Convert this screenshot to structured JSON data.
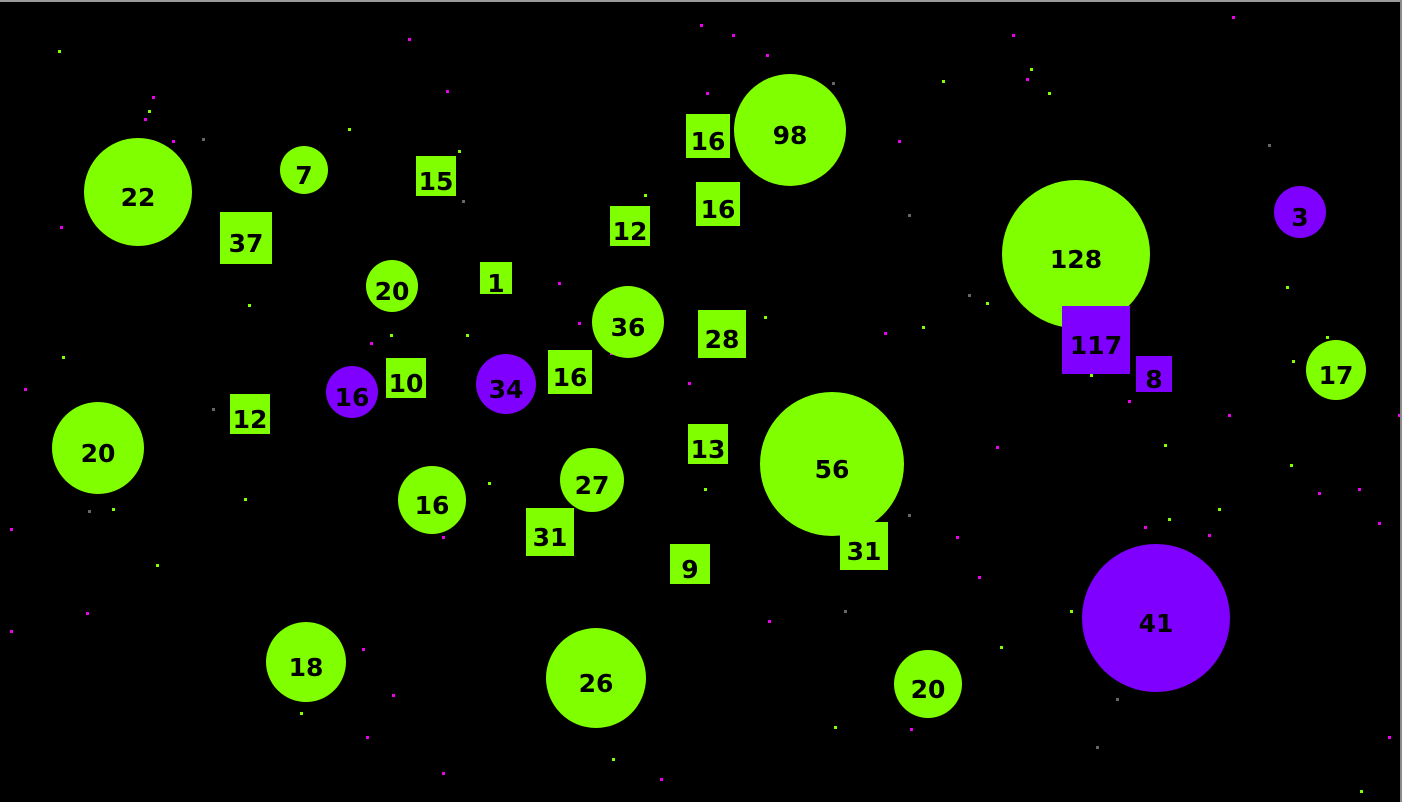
{
  "colors": {
    "background": "#000000",
    "green": "#7fff00",
    "purple": "#7f00ff",
    "pink": "#ee00ee",
    "dim": "#666666"
  },
  "units": [
    {
      "label": "22",
      "shape": "circle",
      "team": "green"
    },
    {
      "label": "7",
      "shape": "circle",
      "team": "green"
    },
    {
      "label": "15",
      "shape": "square",
      "team": "green"
    },
    {
      "label": "37",
      "shape": "square",
      "team": "green"
    },
    {
      "label": "20",
      "shape": "circle",
      "team": "green"
    },
    {
      "label": "1",
      "shape": "square",
      "team": "green"
    },
    {
      "label": "12",
      "shape": "square",
      "team": "green"
    },
    {
      "label": "36",
      "shape": "circle",
      "team": "green"
    },
    {
      "label": "16",
      "shape": "square",
      "team": "green"
    },
    {
      "label": "98",
      "shape": "circle",
      "team": "green"
    },
    {
      "label": "16",
      "shape": "square",
      "team": "green"
    },
    {
      "label": "28",
      "shape": "square",
      "team": "green"
    },
    {
      "label": "128",
      "shape": "circle",
      "team": "green"
    },
    {
      "label": "117",
      "shape": "square",
      "team": "purple"
    },
    {
      "label": "8",
      "shape": "square",
      "team": "purple"
    },
    {
      "label": "3",
      "shape": "circle",
      "team": "purple"
    },
    {
      "label": "17",
      "shape": "circle",
      "team": "green"
    },
    {
      "label": "16",
      "shape": "circle",
      "team": "purple"
    },
    {
      "label": "10",
      "shape": "square",
      "team": "green"
    },
    {
      "label": "34",
      "shape": "circle",
      "team": "purple"
    },
    {
      "label": "16",
      "shape": "square",
      "team": "green"
    },
    {
      "label": "12",
      "shape": "square",
      "team": "green"
    },
    {
      "label": "20",
      "shape": "circle",
      "team": "green"
    },
    {
      "label": "16",
      "shape": "circle",
      "team": "green"
    },
    {
      "label": "27",
      "shape": "circle",
      "team": "green"
    },
    {
      "label": "31",
      "shape": "square",
      "team": "green"
    },
    {
      "label": "13",
      "shape": "square",
      "team": "green"
    },
    {
      "label": "56",
      "shape": "circle",
      "team": "green"
    },
    {
      "label": "31",
      "shape": "square",
      "team": "green"
    },
    {
      "label": "9",
      "shape": "square",
      "team": "green"
    },
    {
      "label": "41",
      "shape": "circle",
      "team": "purple"
    },
    {
      "label": "18",
      "shape": "circle",
      "team": "green"
    },
    {
      "label": "26",
      "shape": "circle",
      "team": "green"
    },
    {
      "label": "20",
      "shape": "circle",
      "team": "green"
    }
  ]
}
